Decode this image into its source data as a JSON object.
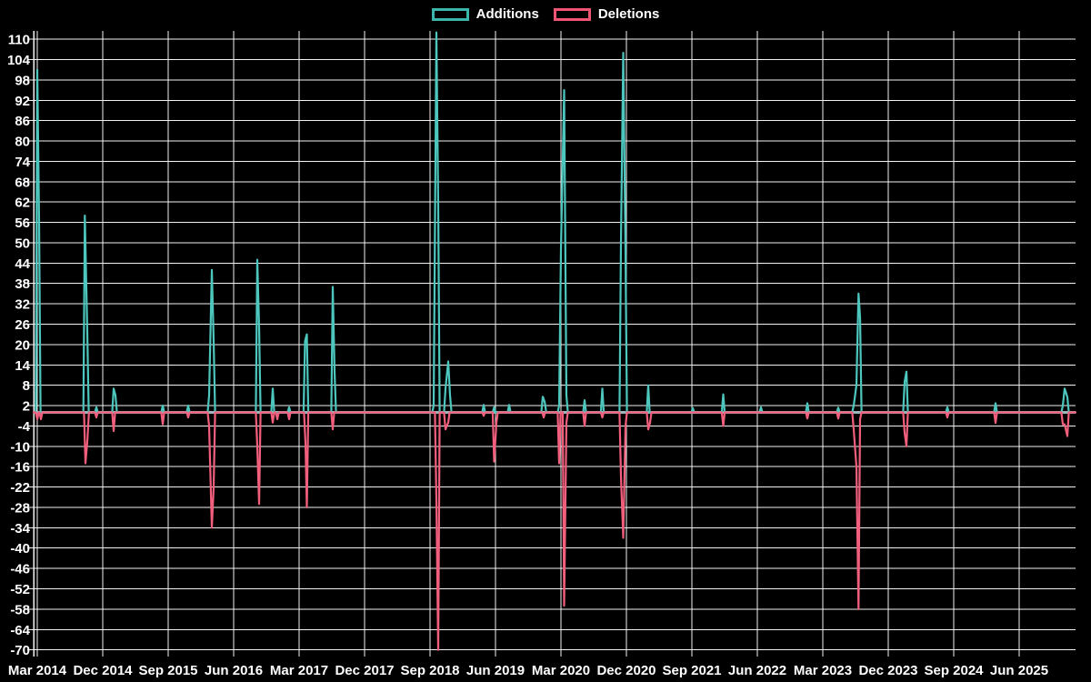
{
  "chart_data": {
    "type": "line",
    "title": "",
    "legend": [
      {
        "label": "Additions",
        "color": "#3cb5ac"
      },
      {
        "label": "Deletions",
        "color": "#ee5573"
      }
    ],
    "colors": {
      "background": "#000000",
      "grid": "#ffffff",
      "axis_text": "#ffffff",
      "baseline": "#a0b4bc",
      "additions_line": "#4dc6bd",
      "deletions_line": "#f25f7d"
    },
    "x_axis": {
      "start_month": "2014-03",
      "unit": "months since Mar 2014",
      "tick_step_months": 9,
      "tick_labels": [
        "Mar 2014",
        "Dec 2014",
        "Sep 2015",
        "Jun 2016",
        "Mar 2017",
        "Dec 2017",
        "Sep 2018",
        "Jun 2019",
        "Mar 2020",
        "Dec 2020",
        "Sep 2021",
        "Jun 2022",
        "Mar 2023",
        "Dec 2023",
        "Sep 2024",
        "Jun 2025"
      ],
      "range_months": [
        -0.5,
        142.75
      ]
    },
    "y_axis": {
      "min": -70,
      "max": 110,
      "step": 6,
      "ticks": [
        110,
        104,
        98,
        92,
        86,
        80,
        74,
        68,
        62,
        56,
        50,
        44,
        38,
        32,
        26,
        20,
        14,
        8,
        2,
        -4,
        -10,
        -16,
        -22,
        -28,
        -34,
        -40,
        -46,
        -52,
        -58,
        -64,
        -70
      ]
    },
    "series": [
      {
        "name": "Additions",
        "note": "weekly additions spikes; value 0 between spikes; 112 = clipped at top of plot (Oct 2018)",
        "points": [
          [
            0.0,
            101
          ],
          [
            0.25,
            56
          ],
          [
            6.54,
            58
          ],
          [
            6.88,
            24
          ],
          [
            8.13,
            1.5
          ],
          [
            10.5,
            7
          ],
          [
            10.75,
            5
          ],
          [
            17.25,
            2
          ],
          [
            20.75,
            2
          ],
          [
            23.63,
            5
          ],
          [
            24.0,
            42
          ],
          [
            24.25,
            21
          ],
          [
            30.25,
            45
          ],
          [
            30.5,
            25
          ],
          [
            32.38,
            7
          ],
          [
            34.63,
            1.5
          ],
          [
            36.81,
            21
          ],
          [
            37.06,
            23
          ],
          [
            40.63,
            37
          ],
          [
            40.88,
            12
          ],
          [
            54.5,
            2
          ],
          [
            54.88,
            112
          ],
          [
            55.13,
            61
          ],
          [
            56.13,
            7
          ],
          [
            56.5,
            15
          ],
          [
            56.75,
            5
          ],
          [
            61.38,
            2.2
          ],
          [
            62.81,
            1.5
          ],
          [
            64.88,
            2.2
          ],
          [
            69.5,
            4.6
          ],
          [
            69.78,
            3
          ],
          [
            71.75,
            2
          ],
          [
            72.0,
            48
          ],
          [
            72.44,
            95
          ],
          [
            72.75,
            5
          ],
          [
            75.25,
            3.6
          ],
          [
            77.69,
            7
          ],
          [
            80.25,
            50
          ],
          [
            80.56,
            106
          ],
          [
            80.88,
            47
          ],
          [
            84.0,
            8
          ],
          [
            90.13,
            1.3
          ],
          [
            94.31,
            5.3
          ],
          [
            99.5,
            1.5
          ],
          [
            105.88,
            2.7
          ],
          [
            110.13,
            1.4
          ],
          [
            112.25,
            2
          ],
          [
            112.63,
            8
          ],
          [
            112.91,
            35
          ],
          [
            113.13,
            28
          ],
          [
            119.25,
            9
          ],
          [
            119.5,
            12
          ],
          [
            125.13,
            1.5
          ],
          [
            131.75,
            2.7
          ],
          [
            141.0,
            2
          ],
          [
            141.25,
            7
          ],
          [
            141.63,
            4.5
          ]
        ]
      },
      {
        "name": "Deletions",
        "note": "weekly deletions spikes; value 0 between spikes; -70 = reaches bottom of plot (Oct 2018)",
        "points": [
          [
            0.0,
            -2
          ],
          [
            0.5,
            -2
          ],
          [
            6.63,
            -15
          ],
          [
            6.9,
            -8
          ],
          [
            8.13,
            -1.5
          ],
          [
            10.5,
            -5.5
          ],
          [
            17.25,
            -3.5
          ],
          [
            20.75,
            -1.5
          ],
          [
            23.63,
            -4
          ],
          [
            24.0,
            -34
          ],
          [
            24.25,
            -22
          ],
          [
            30.25,
            -10
          ],
          [
            30.5,
            -27
          ],
          [
            32.38,
            -3
          ],
          [
            33.0,
            -2
          ],
          [
            34.63,
            -2
          ],
          [
            36.88,
            -9
          ],
          [
            37.06,
            -28
          ],
          [
            40.63,
            -5
          ],
          [
            54.88,
            -26
          ],
          [
            55.13,
            -70
          ],
          [
            56.13,
            -5
          ],
          [
            56.5,
            -3
          ],
          [
            61.38,
            -1
          ],
          [
            62.81,
            -14.5
          ],
          [
            63.13,
            -3
          ],
          [
            69.63,
            -1.5
          ],
          [
            71.75,
            -15
          ],
          [
            72.44,
            -57
          ],
          [
            72.75,
            -3
          ],
          [
            75.25,
            -4
          ],
          [
            77.69,
            -1.5
          ],
          [
            80.25,
            -19
          ],
          [
            80.56,
            -37
          ],
          [
            80.88,
            -4
          ],
          [
            84.0,
            -5
          ],
          [
            84.25,
            -3
          ],
          [
            94.31,
            -4
          ],
          [
            105.88,
            -1.8
          ],
          [
            110.13,
            -1.8
          ],
          [
            112.25,
            -5
          ],
          [
            112.63,
            -16
          ],
          [
            112.91,
            -58
          ],
          [
            113.13,
            -2
          ],
          [
            119.25,
            -6
          ],
          [
            119.5,
            -10
          ],
          [
            125.13,
            -1.5
          ],
          [
            131.75,
            -3.1
          ],
          [
            141.0,
            -3.5
          ],
          [
            141.25,
            -3.5
          ],
          [
            141.63,
            -7
          ]
        ]
      }
    ],
    "grid": true,
    "legend_position": "top-center"
  }
}
